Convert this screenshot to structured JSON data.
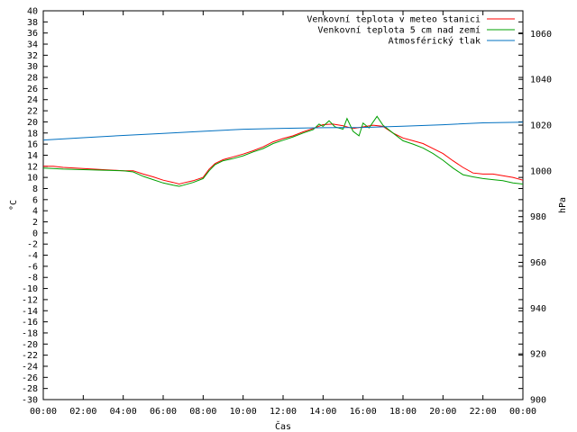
{
  "chart_data": {
    "type": "line",
    "xlabel": "Čas",
    "ylabel_left": "°C",
    "ylabel_right": "hPa",
    "x_range_hours": [
      0,
      24
    ],
    "x_ticks": [
      "00:00",
      "02:00",
      "04:00",
      "06:00",
      "08:00",
      "10:00",
      "12:00",
      "14:00",
      "16:00",
      "18:00",
      "20:00",
      "22:00",
      "00:00"
    ],
    "ylim_left": [
      -30,
      40
    ],
    "y_ticks_left": [
      40,
      38,
      36,
      34,
      32,
      30,
      28,
      26,
      24,
      22,
      20,
      18,
      16,
      14,
      12,
      10,
      8,
      6,
      4,
      2,
      0,
      -2,
      -4,
      -6,
      -8,
      -10,
      -12,
      -14,
      -16,
      -18,
      -20,
      -22,
      -24,
      -26,
      -28,
      -30
    ],
    "ylim_right": [
      900,
      1070
    ],
    "y_ticks_right": [
      1060,
      1040,
      1020,
      1000,
      980,
      960,
      940,
      920,
      900
    ],
    "legend_position": "top-right",
    "grid": false,
    "series": [
      {
        "name": "Venkovní teplota v meteo stanici",
        "color": "#ff0000",
        "axis": "left",
        "x": [
          0,
          0.5,
          1,
          2,
          3,
          4,
          4.5,
          5,
          5.5,
          6,
          6.5,
          6.8,
          7,
          7.5,
          8,
          8.3,
          8.6,
          9,
          9.5,
          10,
          10.5,
          11,
          11.5,
          12,
          12.5,
          13,
          13.5,
          14,
          14.5,
          15,
          15.5,
          16,
          16.5,
          17,
          17.5,
          18,
          18.5,
          19,
          19.5,
          20,
          20.5,
          21,
          21.5,
          22,
          22.5,
          23,
          23.5,
          24
        ],
        "values": [
          12,
          12,
          11.8,
          11.6,
          11.4,
          11.2,
          11.2,
          10.6,
          10.1,
          9.5,
          9.1,
          8.8,
          9,
          9.4,
          10,
          11.5,
          12.5,
          13.2,
          13.7,
          14.2,
          14.8,
          15.5,
          16.4,
          17,
          17.5,
          18.2,
          18.8,
          19.5,
          19.6,
          19.3,
          18.8,
          19.1,
          19.4,
          19.2,
          18,
          17.1,
          16.6,
          16.1,
          15.2,
          14.3,
          13,
          11.8,
          10.8,
          10.6,
          10.6,
          10.3,
          10.0,
          9.5
        ]
      },
      {
        "name": "Venkovní teplota 5 cm nad zemí",
        "color": "#00a000",
        "axis": "left",
        "x": [
          0,
          0.5,
          1,
          2,
          3,
          4,
          4.5,
          5,
          5.5,
          6,
          6.5,
          6.8,
          7,
          7.5,
          8,
          8.3,
          8.6,
          9,
          9.5,
          10,
          10.5,
          11,
          11.5,
          12,
          12.5,
          13,
          13.5,
          13.8,
          14,
          14.3,
          14.6,
          15,
          15.2,
          15.5,
          15.8,
          16,
          16.3,
          16.7,
          17,
          17.5,
          18,
          18.5,
          19,
          19.5,
          20,
          20.5,
          21,
          21.5,
          22,
          22.5,
          23,
          23.5,
          24
        ],
        "values": [
          11.7,
          11.6,
          11.5,
          11.4,
          11.3,
          11.2,
          11,
          10.2,
          9.6,
          9,
          8.6,
          8.4,
          8.6,
          9.1,
          9.8,
          11.2,
          12.3,
          13,
          13.4,
          13.9,
          14.6,
          15.2,
          16.1,
          16.7,
          17.3,
          18,
          18.6,
          19.6,
          19.2,
          20.2,
          19.1,
          18.7,
          20.6,
          18.3,
          17.5,
          19.8,
          18.9,
          21,
          19.4,
          18,
          16.6,
          16,
          15.3,
          14.3,
          13.1,
          11.7,
          10.5,
          10.1,
          9.8,
          9.6,
          9.4,
          9.0,
          8.8
        ]
      },
      {
        "name": "Atmosférický tlak",
        "color": "#0070c0",
        "axis": "right",
        "x": [
          0,
          2,
          4,
          6,
          8,
          10,
          12,
          14,
          16,
          18,
          20,
          22,
          24
        ],
        "values": [
          1013.5,
          1014.5,
          1015.5,
          1016.4,
          1017.3,
          1018.2,
          1018.6,
          1018.9,
          1019.0,
          1019.5,
          1020.2,
          1021.0,
          1021.3
        ]
      }
    ]
  }
}
